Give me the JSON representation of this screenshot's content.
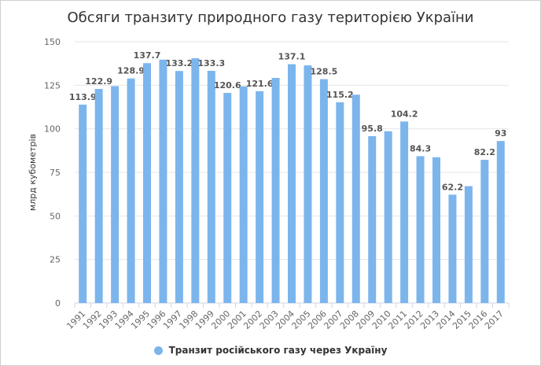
{
  "chart_data": {
    "type": "bar",
    "title": "Обсяги транзиту природного газу територією України",
    "ylabel": "млрд кубометрів",
    "xlabel": "",
    "ylim": [
      0,
      150
    ],
    "yticks": [
      0,
      25,
      50,
      75,
      100,
      125,
      150
    ],
    "grid": true,
    "legend_position": "bottom-center",
    "categories": [
      "1991",
      "1992",
      "1993",
      "1994",
      "1995",
      "1996",
      "1997",
      "1998",
      "1999",
      "2000",
      "2001",
      "2002",
      "2003",
      "2004",
      "2005",
      "2006",
      "2007",
      "2008",
      "2009",
      "2010",
      "2011",
      "2012",
      "2013",
      "2014",
      "2015",
      "2016",
      "2017"
    ],
    "series": [
      {
        "name": "Транзит російського газу через Україну",
        "color": "#7cb5ec",
        "values": [
          113.9,
          122.9,
          124.5,
          128.9,
          137.7,
          139.7,
          133.2,
          140.5,
          133.3,
          120.6,
          124.4,
          121.6,
          129.2,
          137.1,
          136.4,
          128.5,
          115.2,
          119.6,
          95.8,
          98.6,
          104.2,
          84.3,
          83.7,
          62.2,
          67.1,
          82.2,
          93
        ],
        "labels": [
          "113.9",
          "122.9",
          "",
          "128.9",
          "137.7",
          "",
          "133.2",
          "",
          "133.3",
          "120.6",
          "",
          "121.6",
          "",
          "137.1",
          "",
          "128.5",
          "115.2",
          "",
          "95.8",
          "",
          "104.2",
          "84.3",
          "",
          "62.2",
          "",
          "82.2",
          "93"
        ]
      }
    ]
  }
}
